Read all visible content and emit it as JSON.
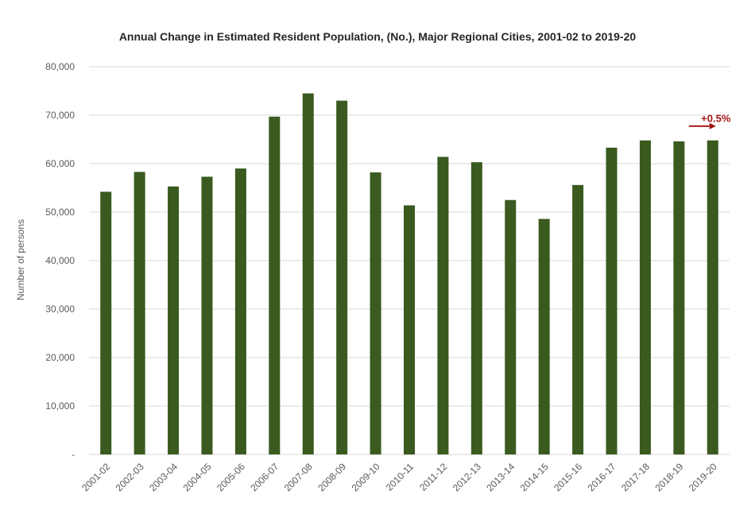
{
  "chart_data": {
    "type": "bar",
    "title": "Annual Change in Estimated Resident Population, (No.), Major Regional Cities, 2001-02 to 2019-20",
    "xlabel": "",
    "ylabel": "Number of persons",
    "ylim": [
      0,
      80000
    ],
    "yticks": [
      "-",
      "10,000",
      "20,000",
      "30,000",
      "40,000",
      "50,000",
      "60,000",
      "70,000",
      "80,000"
    ],
    "grid": true,
    "categories": [
      "2001-02",
      "2002-03",
      "2003-04",
      "2004-05",
      "2005-06",
      "2006-07",
      "2007-08",
      "2008-09",
      "2009-10",
      "2010-11",
      "2011-12",
      "2012-13",
      "2013-14",
      "2014-15",
      "2015-16",
      "2016-17",
      "2017-18",
      "2018-19",
      "2019-20"
    ],
    "values": [
      54200,
      58300,
      55300,
      57300,
      59000,
      69700,
      74500,
      73000,
      58200,
      51400,
      61400,
      60300,
      52500,
      48600,
      55600,
      63300,
      64800,
      64600,
      64800
    ],
    "annotation": {
      "text": "+0.5%",
      "category": "2019-20"
    },
    "colors": {
      "bar": "#3a5a1f",
      "grid": "#d9d9d9",
      "axis_text": "#595959",
      "annotation": "#a31515"
    }
  }
}
